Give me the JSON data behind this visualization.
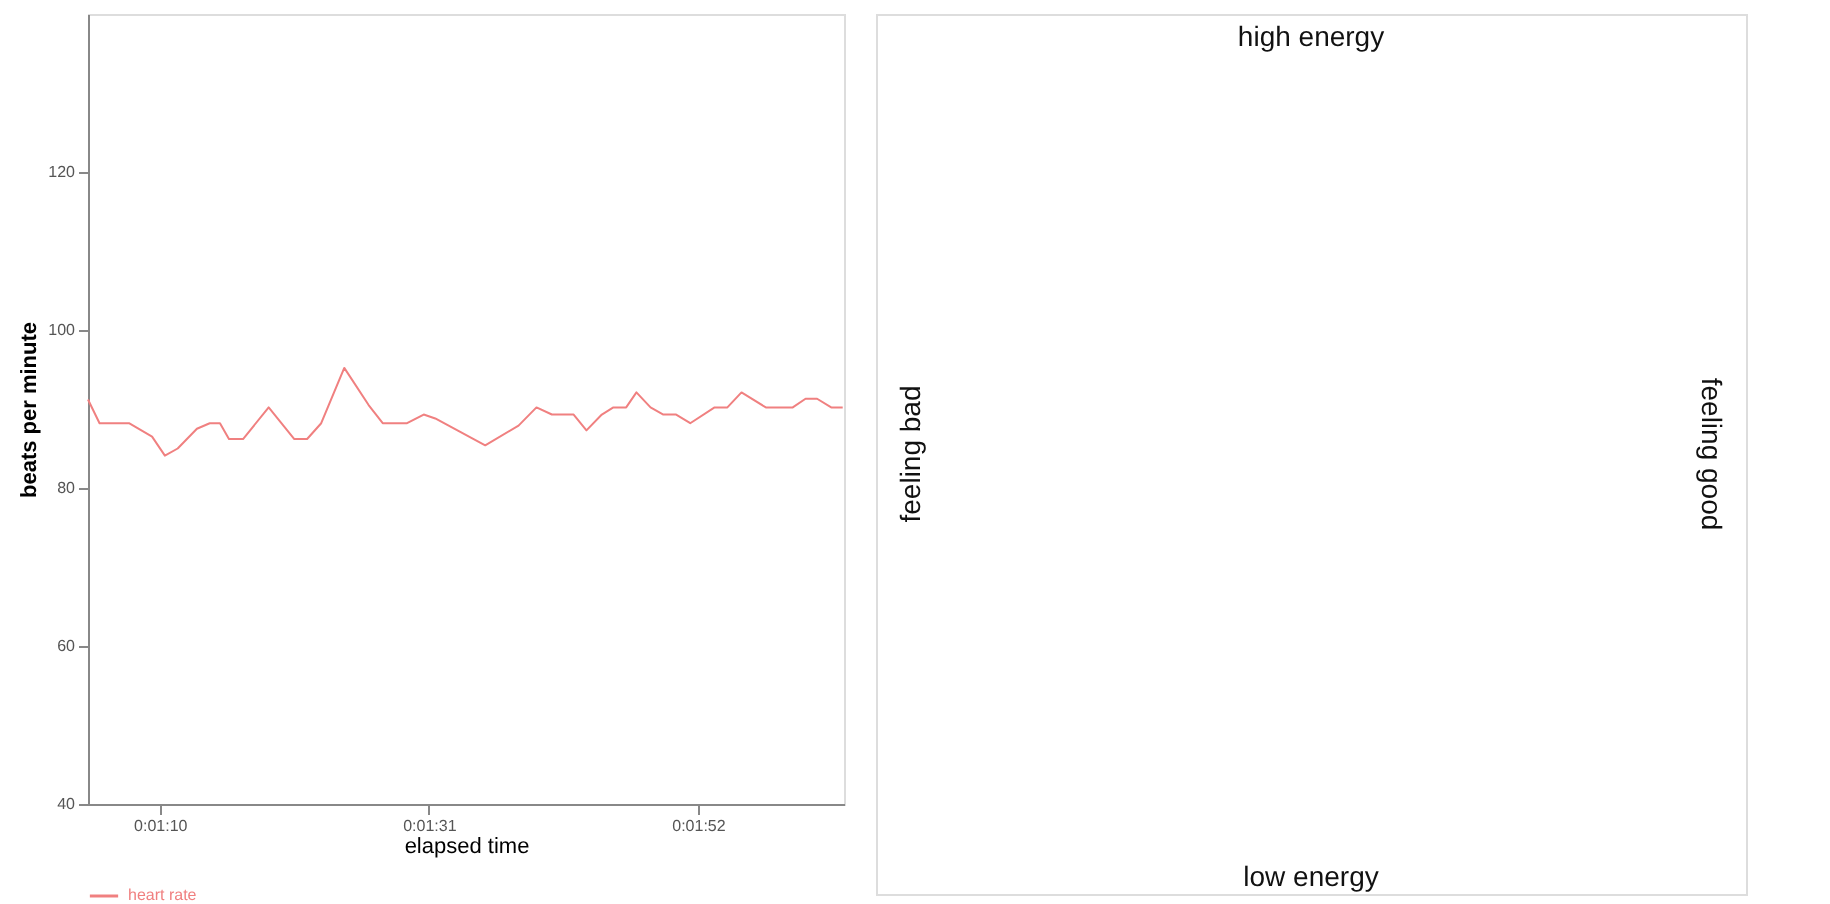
{
  "chart_data": [
    {
      "type": "line",
      "xlabel": "elapsed time",
      "ylabel": "beats per minute",
      "xlim": [
        64.4,
        123.4
      ],
      "ylim": [
        40,
        140
      ],
      "xticks": [
        {
          "value": 70,
          "label": "0:01:10"
        },
        {
          "value": 91,
          "label": "0:01:31"
        },
        {
          "value": 112,
          "label": "0:01:52"
        }
      ],
      "yticks": [
        40,
        60,
        80,
        100,
        120
      ],
      "grid": false,
      "legend": "bottom",
      "marker": "none",
      "line_style": "solid",
      "series": [
        {
          "name": "heart rate",
          "color": "#f08080",
          "x": [
            64.4,
            65.3,
            67.6,
            69.4,
            70.4,
            71.4,
            72.9,
            73.9,
            74.7,
            75.4,
            76.5,
            78.5,
            80.5,
            81.5,
            82.6,
            84.4,
            86.3,
            87.4,
            89.3,
            90.6,
            91.5,
            95.4,
            98.0,
            99.4,
            100.6,
            102.3,
            103.3,
            104.5,
            105.4,
            106.4,
            107.2,
            108.3,
            109.3,
            110.3,
            111.4,
            113.3,
            114.3,
            115.4,
            117.3,
            119.4,
            120.4,
            121.3,
            122.4,
            123.3
          ],
          "values": [
            91.2,
            88.2,
            88.2,
            86.5,
            84.1,
            85.0,
            87.5,
            88.2,
            88.2,
            86.2,
            86.2,
            90.2,
            86.2,
            86.2,
            88.2,
            95.2,
            90.5,
            88.2,
            88.2,
            89.3,
            88.8,
            85.4,
            87.9,
            90.2,
            89.3,
            89.3,
            87.3,
            89.3,
            90.2,
            90.2,
            92.1,
            90.2,
            89.3,
            89.3,
            88.2,
            90.2,
            90.2,
            92.1,
            90.2,
            90.2,
            91.3,
            91.3,
            90.2,
            90.2
          ]
        }
      ]
    },
    {
      "type": "other",
      "annotations": [
        "high energy",
        "low energy",
        "feeling bad",
        "feeling good"
      ]
    }
  ]
}
